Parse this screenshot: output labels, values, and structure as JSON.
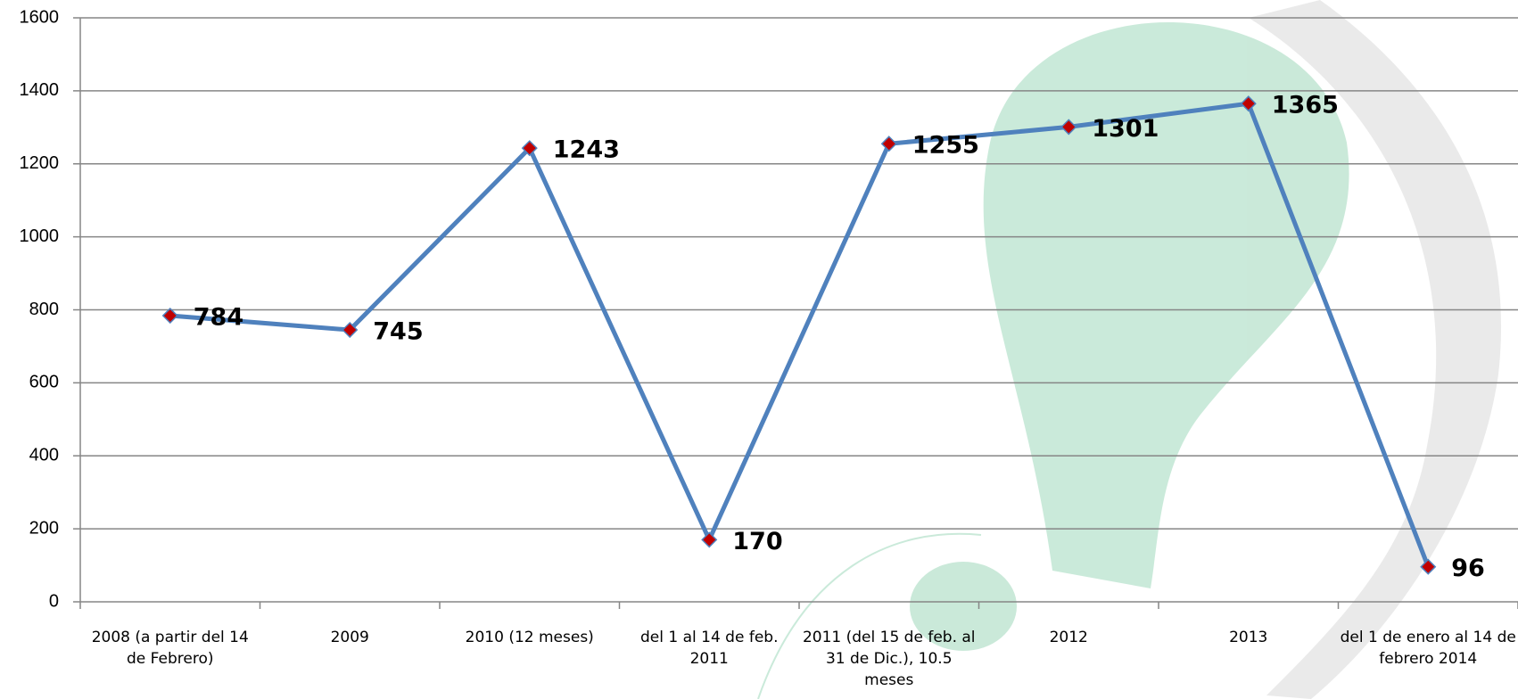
{
  "chart_data": {
    "type": "line",
    "categories": [
      "2008 (a partir del 14 de Febrero)",
      "2009",
      "2010 (12 meses)",
      "del 1 al 14 de feb. 2011",
      "2011 (del 15 de feb. al 31 de Dic.), 10.5 meses",
      "2012",
      "2013",
      "del 1 de enero al 14 de febrero 2014"
    ],
    "values": [
      784,
      745,
      1243,
      170,
      1255,
      1301,
      1365,
      96
    ],
    "color": "#4f81bd",
    "marker_color": "#c00000",
    "ylim": [
      0,
      1600
    ],
    "yticks": [
      0,
      200,
      400,
      600,
      800,
      1000,
      1200,
      1400,
      1600
    ],
    "grid": true
  }
}
